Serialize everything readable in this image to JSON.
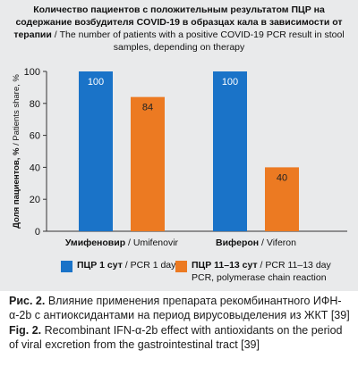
{
  "chart_data": {
    "type": "bar",
    "title": {
      "ru": "Количество пациентов с положительным результатом ПЦР на содержание возбудителя COVID-19 в образцах кала в зависимости от терапии",
      "en": "The number of patients with a positive COVID-19 PCR result in stool samples, depending on therapy"
    },
    "ylabel": {
      "ru": "Доля пациентов, %",
      "en": "Patients share, %"
    },
    "ylim": [
      0,
      100
    ],
    "yticks": [
      "0",
      "20",
      "40",
      "60",
      "80",
      "100"
    ],
    "categories": [
      {
        "ru": "Умифеновир",
        "en": "Umifenovir"
      },
      {
        "ru": "Виферон",
        "en": "Viferon"
      }
    ],
    "series": [
      {
        "name": {
          "ru": "ПЦР 1 сут",
          "en": "PCR 1 day"
        },
        "color": "#1a73c8",
        "values": [
          100,
          100
        ],
        "labels": [
          "100",
          "100"
        ]
      },
      {
        "name": {
          "ru": "ПЦР 11–13 сут",
          "en": "PCR 11–13 day"
        },
        "color": "#ec7a22",
        "values": [
          84,
          40
        ],
        "labels": [
          "84",
          "40"
        ]
      }
    ],
    "legend_note": "PCR, polymerase chain reaction",
    "grid": false,
    "legend_position": "bottom"
  },
  "caption": {
    "ru_label": "Рис. 2.",
    "ru_text": "Влияние применения препарата рекомбинантного ИФН-α-2b с антиоксидантами на период вирусовыделения из ЖКТ [39]",
    "en_label": "Fig. 2.",
    "en_text": "Recombinant IFN-α-2b effect with antioxidants on the period of viral excretion from the gastrointestinal tract [39]"
  }
}
